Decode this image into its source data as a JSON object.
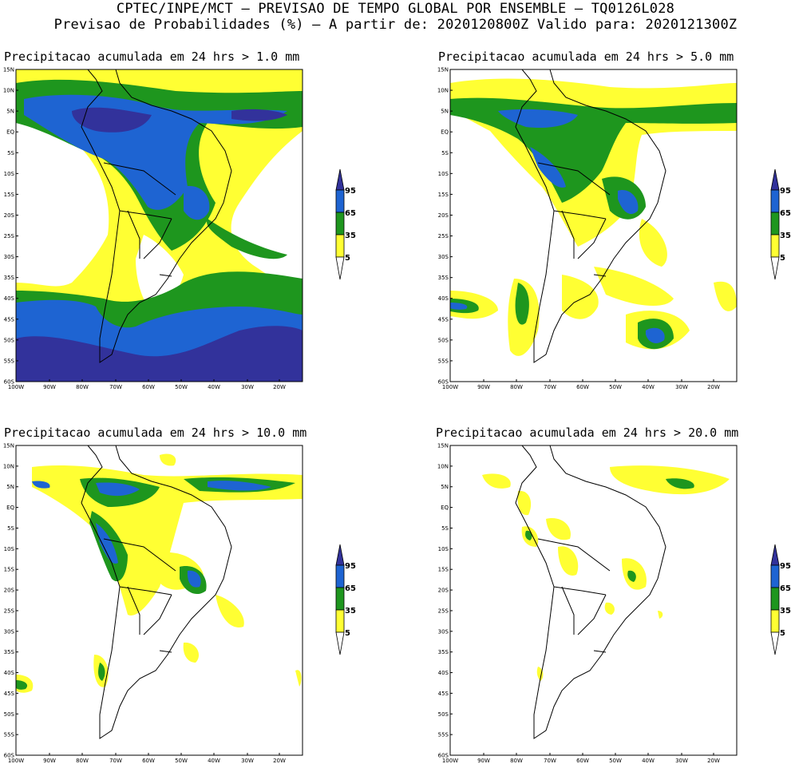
{
  "header": {
    "line1": "CPTEC/INPE/MCT – PREVISAO DE TEMPO GLOBAL POR ENSEMBLE – TQ0126L028",
    "line2": "Previsao de Probabilidades (%) –  A partir de: 2020120800Z  Valido para: 2020121300Z"
  },
  "panels": [
    {
      "title": "Precipitacao acumulada em 24 hrs > 1.0 mm"
    },
    {
      "title": "Precipitacao acumulada em 24 hrs > 5.0 mm"
    },
    {
      "title": "Precipitacao acumulada em 24 hrs > 10.0 mm"
    },
    {
      "title": "Precipitacao acumulada em 24 hrs > 20.0 mm"
    }
  ],
  "axes": {
    "lat_labels": [
      "15N",
      "10N",
      "5N",
      "EQ",
      "5S",
      "10S",
      "15S",
      "20S",
      "25S",
      "30S",
      "35S",
      "40S",
      "45S",
      "50S",
      "55S",
      "60S"
    ],
    "lon_labels": [
      "100W",
      "90W",
      "80W",
      "70W",
      "60W",
      "50W",
      "40W",
      "30W",
      "20W"
    ]
  },
  "legend": {
    "levels": [
      "95",
      "65",
      "35",
      "5"
    ],
    "colors": {
      "low": "#ffff33",
      "mid": "#1e961e",
      "high": "#1e64d2",
      "top": "#32329b"
    }
  }
}
